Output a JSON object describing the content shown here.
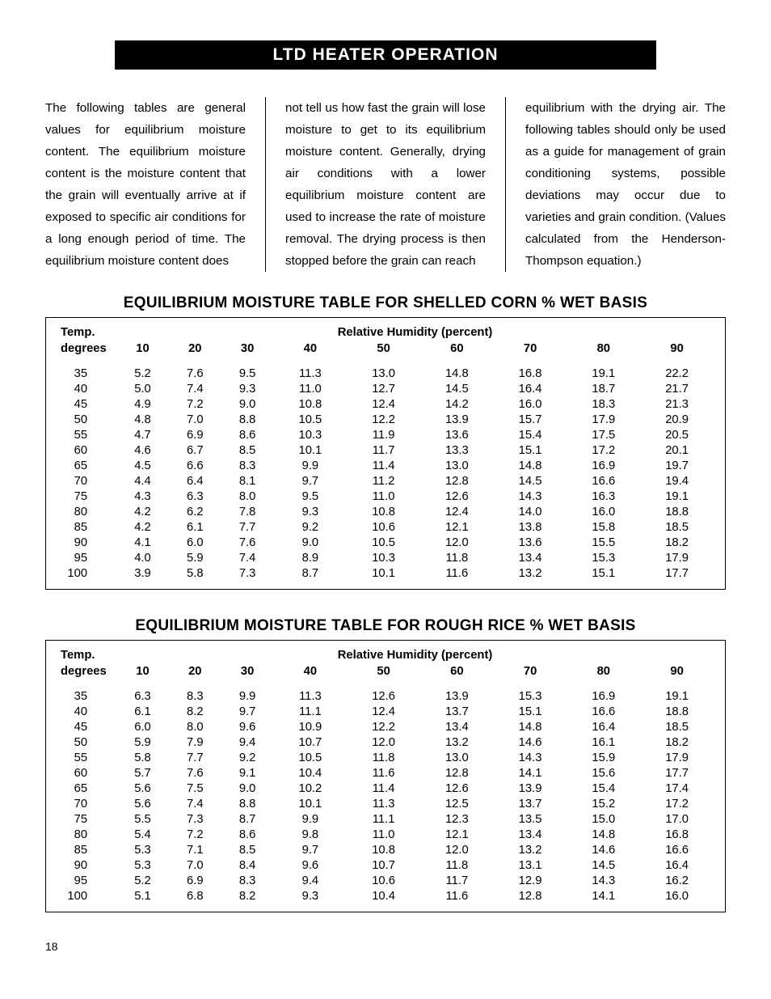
{
  "page": {
    "titleBar": "LTD HEATER OPERATION",
    "pageNumber": "18"
  },
  "intro": {
    "col1": "The following tables are general values for equilibrium moisture content. The equilibrium moisture content is the moisture content that the grain will eventually arrive at if exposed to specific air conditions for a long enough period of time. The equilibrium moisture content does",
    "col2": "not tell us how fast the grain will lose moisture to get to its equilibrium moisture content. Generally, drying air conditions with a lower equilibrium moisture content are used to increase the rate of moisture removal. The drying process is then stopped before the grain can reach",
    "col3": "equilibrium with the drying air. The following tables should only be used as a guide for management of grain conditioning systems, possible deviations may occur due to varieties and grain condition. (Values calculated from the Henderson-Thompson equation.)"
  },
  "headers": {
    "tempLine1": "Temp.",
    "tempLine2": "degrees",
    "rhTitle": "Relative Humidity (percent)",
    "rhCols": [
      "10",
      "20",
      "30",
      "40",
      "50",
      "60",
      "70",
      "80",
      "90"
    ]
  },
  "tables": {
    "corn": {
      "title": "EQUILIBRIUM MOISTURE TABLE FOR SHELLED CORN % WET BASIS",
      "rows": [
        {
          "t": "35",
          "v": [
            "5.2",
            "7.6",
            "9.5",
            "11.3",
            "13.0",
            "14.8",
            "16.8",
            "19.1",
            "22.2"
          ]
        },
        {
          "t": "40",
          "v": [
            "5.0",
            "7.4",
            "9.3",
            "11.0",
            "12.7",
            "14.5",
            "16.4",
            "18.7",
            "21.7"
          ]
        },
        {
          "t": "45",
          "v": [
            "4.9",
            "7.2",
            "9.0",
            "10.8",
            "12.4",
            "14.2",
            "16.0",
            "18.3",
            "21.3"
          ]
        },
        {
          "t": "50",
          "v": [
            "4.8",
            "7.0",
            "8.8",
            "10.5",
            "12.2",
            "13.9",
            "15.7",
            "17.9",
            "20.9"
          ]
        },
        {
          "t": "55",
          "v": [
            "4.7",
            "6.9",
            "8.6",
            "10.3",
            "11.9",
            "13.6",
            "15.4",
            "17.5",
            "20.5"
          ]
        },
        {
          "t": "60",
          "v": [
            "4.6",
            "6.7",
            "8.5",
            "10.1",
            "11.7",
            "13.3",
            "15.1",
            "17.2",
            "20.1"
          ]
        },
        {
          "t": "65",
          "v": [
            "4.5",
            "6.6",
            "8.3",
            "9.9",
            "11.4",
            "13.0",
            "14.8",
            "16.9",
            "19.7"
          ]
        },
        {
          "t": "70",
          "v": [
            "4.4",
            "6.4",
            "8.1",
            "9.7",
            "11.2",
            "12.8",
            "14.5",
            "16.6",
            "19.4"
          ]
        },
        {
          "t": "75",
          "v": [
            "4.3",
            "6.3",
            "8.0",
            "9.5",
            "11.0",
            "12.6",
            "14.3",
            "16.3",
            "19.1"
          ]
        },
        {
          "t": "80",
          "v": [
            "4.2",
            "6.2",
            "7.8",
            "9.3",
            "10.8",
            "12.4",
            "14.0",
            "16.0",
            "18.8"
          ]
        },
        {
          "t": "85",
          "v": [
            "4.2",
            "6.1",
            "7.7",
            "9.2",
            "10.6",
            "12.1",
            "13.8",
            "15.8",
            "18.5"
          ]
        },
        {
          "t": "90",
          "v": [
            "4.1",
            "6.0",
            "7.6",
            "9.0",
            "10.5",
            "12.0",
            "13.6",
            "15.5",
            "18.2"
          ]
        },
        {
          "t": "95",
          "v": [
            "4.0",
            "5.9",
            "7.4",
            "8.9",
            "10.3",
            "11.8",
            "13.4",
            "15.3",
            "17.9"
          ]
        },
        {
          "t": "100",
          "v": [
            "3.9",
            "5.8",
            "7.3",
            "8.7",
            "10.1",
            "11.6",
            "13.2",
            "15.1",
            "17.7"
          ]
        }
      ]
    },
    "rice": {
      "title": "EQUILIBRIUM MOISTURE TABLE FOR ROUGH RICE % WET BASIS",
      "rows": [
        {
          "t": "35",
          "v": [
            "6.3",
            "8.3",
            "9.9",
            "11.3",
            "12.6",
            "13.9",
            "15.3",
            "16.9",
            "19.1"
          ]
        },
        {
          "t": "40",
          "v": [
            "6.1",
            "8.2",
            "9.7",
            "11.1",
            "12.4",
            "13.7",
            "15.1",
            "16.6",
            "18.8"
          ]
        },
        {
          "t": "45",
          "v": [
            "6.0",
            "8.0",
            "9.6",
            "10.9",
            "12.2",
            "13.4",
            "14.8",
            "16.4",
            "18.5"
          ]
        },
        {
          "t": "50",
          "v": [
            "5.9",
            "7.9",
            "9.4",
            "10.7",
            "12.0",
            "13.2",
            "14.6",
            "16.1",
            "18.2"
          ]
        },
        {
          "t": "55",
          "v": [
            "5.8",
            "7.7",
            "9.2",
            "10.5",
            "11.8",
            "13.0",
            "14.3",
            "15.9",
            "17.9"
          ]
        },
        {
          "t": "60",
          "v": [
            "5.7",
            "7.6",
            "9.1",
            "10.4",
            "11.6",
            "12.8",
            "14.1",
            "15.6",
            "17.7"
          ]
        },
        {
          "t": "65",
          "v": [
            "5.6",
            "7.5",
            "9.0",
            "10.2",
            "11.4",
            "12.6",
            "13.9",
            "15.4",
            "17.4"
          ]
        },
        {
          "t": "70",
          "v": [
            "5.6",
            "7.4",
            "8.8",
            "10.1",
            "11.3",
            "12.5",
            "13.7",
            "15.2",
            "17.2"
          ]
        },
        {
          "t": "75",
          "v": [
            "5.5",
            "7.3",
            "8.7",
            "9.9",
            "11.1",
            "12.3",
            "13.5",
            "15.0",
            "17.0"
          ]
        },
        {
          "t": "80",
          "v": [
            "5.4",
            "7.2",
            "8.6",
            "9.8",
            "11.0",
            "12.1",
            "13.4",
            "14.8",
            "16.8"
          ]
        },
        {
          "t": "85",
          "v": [
            "5.3",
            "7.1",
            "8.5",
            "9.7",
            "10.8",
            "12.0",
            "13.2",
            "14.6",
            "16.6"
          ]
        },
        {
          "t": "90",
          "v": [
            "5.3",
            "7.0",
            "8.4",
            "9.6",
            "10.7",
            "11.8",
            "13.1",
            "14.5",
            "16.4"
          ]
        },
        {
          "t": "95",
          "v": [
            "5.2",
            "6.9",
            "8.3",
            "9.4",
            "10.6",
            "11.7",
            "12.9",
            "14.3",
            "16.2"
          ]
        },
        {
          "t": "100",
          "v": [
            "5.1",
            "6.8",
            "8.2",
            "9.3",
            "10.4",
            "11.6",
            "12.8",
            "14.1",
            "16.0"
          ]
        }
      ]
    }
  }
}
